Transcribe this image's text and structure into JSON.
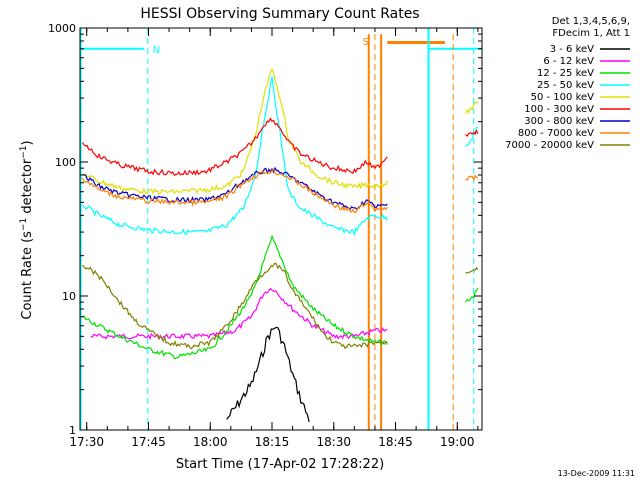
{
  "chart_data": {
    "type": "line",
    "title": "HESSI Observing Summary Count Rates",
    "xlabel": "Start Time (17-Apr-02 17:28:22)",
    "ylabel": "Count Rate (s⁻¹ detector⁻¹)",
    "x_ticks": [
      "17:30",
      "17:45",
      "18:00",
      "18:15",
      "18:30",
      "18:45",
      "19:00"
    ],
    "y_ticks": [
      "1",
      "10",
      "100",
      "1000"
    ],
    "y_scale": "log",
    "xlim": [
      "17:28:22",
      "19:06"
    ],
    "ylim": [
      1,
      1000
    ],
    "legend_header": [
      "Det 1,3,4,5,6,9,",
      "FDecim 1, Att 1"
    ],
    "legend_position": "right",
    "footer": "13-Dec-2009 11:31",
    "flag_labels": [
      "N",
      "S"
    ],
    "series": [
      {
        "name": "3 - 6 keV",
        "color": "#000000",
        "x": [
          "18:04",
          "18:07",
          "18:10",
          "18:12",
          "18:14",
          "18:16",
          "18:18",
          "18:20",
          "18:22",
          "18:24"
        ],
        "y": [
          1.2,
          1.6,
          2.2,
          3.2,
          5.0,
          6.0,
          4.2,
          2.6,
          1.7,
          1.2
        ]
      },
      {
        "name": "6 - 12 keV",
        "color": "#ff00ff",
        "x": [
          "17:31",
          "17:38",
          "17:45",
          "17:52",
          "18:00",
          "18:06",
          "18:10",
          "18:13",
          "18:15",
          "18:17",
          "18:20",
          "18:25",
          "18:30",
          "18:35",
          "18:40",
          "18:43"
        ],
        "y": [
          5.0,
          5.0,
          5.0,
          5.0,
          5.0,
          5.5,
          7.0,
          10.5,
          11.5,
          10.0,
          8.0,
          6.0,
          5.0,
          5.0,
          5.5,
          5.5
        ]
      },
      {
        "name": "12 - 25 keV",
        "color": "#00e000",
        "x": [
          "17:29",
          "17:33",
          "17:38",
          "17:45",
          "17:52",
          "18:00",
          "18:05",
          "18:10",
          "18:13",
          "18:15",
          "18:17",
          "18:20",
          "18:25",
          "18:30",
          "18:35",
          "18:40",
          "18:43",
          "19:02",
          "19:04",
          "19:05"
        ],
        "y": [
          7.0,
          6.0,
          5.0,
          4.0,
          3.5,
          4.0,
          6.0,
          10.0,
          18.0,
          27.0,
          20.0,
          12.0,
          8.0,
          6.0,
          5.0,
          4.5,
          4.5,
          9.0,
          10.0,
          11.0
        ]
      },
      {
        "name": "25 - 50 keV",
        "color": "#00ffff",
        "x": [
          "17:29",
          "17:33",
          "17:38",
          "17:45",
          "17:52",
          "17:59",
          "18:04",
          "18:08",
          "18:11",
          "18:13",
          "18:15",
          "18:17",
          "18:19",
          "18:22",
          "18:26",
          "18:30",
          "18:35",
          "18:38",
          "18:40",
          "18:43",
          "19:02",
          "19:04",
          "19:05"
        ],
        "y": [
          48,
          40,
          34,
          31,
          30,
          30,
          34,
          45,
          80,
          200,
          420,
          160,
          60,
          45,
          38,
          32,
          30,
          38,
          40,
          38,
          130,
          160,
          180
        ]
      },
      {
        "name": "50 - 100 keV",
        "color": "#e0e000",
        "x": [
          "17:29",
          "17:33",
          "17:38",
          "17:45",
          "17:52",
          "17:59",
          "18:04",
          "18:08",
          "18:11",
          "18:13",
          "18:15",
          "18:17",
          "18:19",
          "18:22",
          "18:26",
          "18:30",
          "18:35",
          "18:38",
          "18:40",
          "18:43",
          "19:02",
          "19:04",
          "19:05"
        ],
        "y": [
          82,
          72,
          64,
          60,
          60,
          62,
          66,
          85,
          160,
          310,
          500,
          300,
          150,
          100,
          80,
          70,
          65,
          68,
          66,
          70,
          230,
          260,
          280
        ]
      },
      {
        "name": "100 - 300 keV",
        "color": "#ff0000",
        "x": [
          "17:29",
          "17:33",
          "17:38",
          "17:45",
          "17:52",
          "17:59",
          "18:04",
          "18:08",
          "18:11",
          "18:13",
          "18:15",
          "18:17",
          "18:19",
          "18:22",
          "18:26",
          "18:30",
          "18:35",
          "18:38",
          "18:40",
          "18:43",
          "19:02",
          "19:04",
          "19:05"
        ],
        "y": [
          140,
          110,
          95,
          85,
          82,
          85,
          100,
          120,
          150,
          190,
          210,
          180,
          140,
          115,
          100,
          90,
          85,
          100,
          88,
          110,
          160,
          170,
          165
        ]
      },
      {
        "name": "300 - 800 keV",
        "color": "#0000cc",
        "x": [
          "17:29",
          "17:33",
          "17:38",
          "17:45",
          "17:52",
          "17:59",
          "18:04",
          "18:08",
          "18:12",
          "18:15",
          "18:18",
          "18:22",
          "18:26",
          "18:30",
          "18:35",
          "18:38",
          "18:40",
          "18:43"
        ],
        "y": [
          80,
          66,
          58,
          54,
          52,
          52,
          58,
          72,
          84,
          88,
          82,
          70,
          58,
          50,
          44,
          52,
          46,
          48
        ]
      },
      {
        "name": "800 - 7000 keV",
        "color": "#ff8000",
        "x": [
          "17:29",
          "17:33",
          "17:38",
          "17:45",
          "17:52",
          "17:59",
          "18:04",
          "18:08",
          "18:12",
          "18:15",
          "18:18",
          "18:22",
          "18:26",
          "18:30",
          "18:35",
          "18:38",
          "18:40",
          "18:43",
          "19:02",
          "19:04",
          "19:05"
        ],
        "y": [
          76,
          62,
          55,
          51,
          50,
          50,
          55,
          70,
          82,
          86,
          80,
          68,
          56,
          48,
          42,
          50,
          44,
          46,
          74,
          76,
          76
        ]
      },
      {
        "name": "7000 - 20000 keV",
        "color": "#808000",
        "x": [
          "17:29",
          "17:32",
          "17:35",
          "17:38",
          "17:42",
          "17:45",
          "17:50",
          "17:55",
          "18:00",
          "18:04",
          "18:08",
          "18:11",
          "18:14",
          "18:16",
          "18:18",
          "18:20",
          "18:24",
          "18:28",
          "18:32",
          "18:36",
          "18:40",
          "18:43",
          "19:02",
          "19:04",
          "19:05"
        ],
        "y": [
          17,
          15,
          12,
          9,
          6.5,
          5.5,
          4.5,
          4.2,
          4.5,
          6,
          9,
          13,
          16,
          17,
          15,
          11,
          7.5,
          5,
          4.2,
          4.2,
          4.5,
          4.5,
          15,
          16,
          16
        ]
      }
    ]
  }
}
